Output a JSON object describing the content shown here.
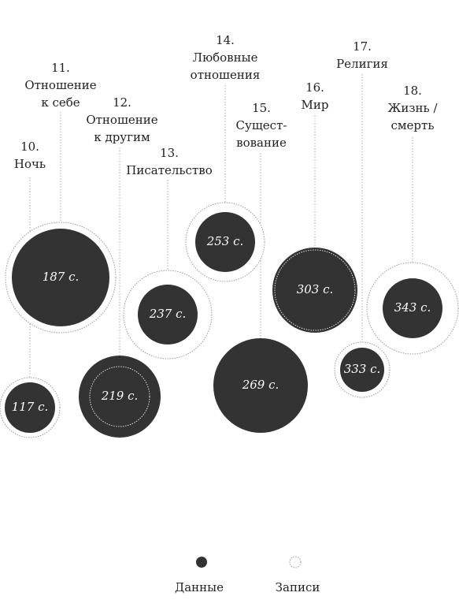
{
  "nodes": [
    {
      "number": "10.",
      "label_lines": [
        "Ночь"
      ],
      "value": "117 с."
    },
    {
      "number": "11.",
      "label_lines": [
        "Отношение",
        "к себе"
      ],
      "value": "187 с."
    },
    {
      "number": "12.",
      "label_lines": [
        "Отношение",
        "к другим"
      ],
      "value": "219 с."
    },
    {
      "number": "13.",
      "label_lines": [
        "Писательство"
      ],
      "value": "237 с."
    },
    {
      "number": "14.",
      "label_lines": [
        "Любовные",
        "отношения"
      ],
      "value": "253 с."
    },
    {
      "number": "15.",
      "label_lines": [
        "Сущест-",
        "вование"
      ],
      "value": "269 с."
    },
    {
      "number": "16.",
      "label_lines": [
        "Мир"
      ],
      "value": "303 с."
    },
    {
      "number": "17.",
      "label_lines": [
        "Религия"
      ],
      "value": "333 с."
    },
    {
      "number": "18.",
      "label_lines": [
        "Жизнь /",
        "смерть"
      ],
      "value": "343 с."
    }
  ],
  "legend": [
    "Данные",
    "Записи"
  ]
}
